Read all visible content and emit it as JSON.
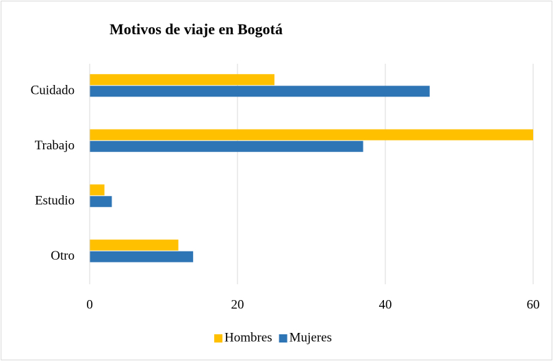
{
  "chart_data": {
    "type": "hbar",
    "title": "Motivos de viaje en Bogotá",
    "categories": [
      "Cuidado",
      "Trabajo",
      "Estudio",
      "Otro"
    ],
    "series": [
      {
        "name": "Hombres",
        "color": "#FFC000",
        "values": [
          25,
          60,
          2,
          12
        ]
      },
      {
        "name": "Mujeres",
        "color": "#2E75B6",
        "values": [
          46,
          37,
          3,
          14
        ]
      }
    ],
    "xlim": [
      0,
      60
    ],
    "xticks": [
      0,
      20,
      40,
      60
    ],
    "grid": true,
    "legend": "bottom"
  }
}
